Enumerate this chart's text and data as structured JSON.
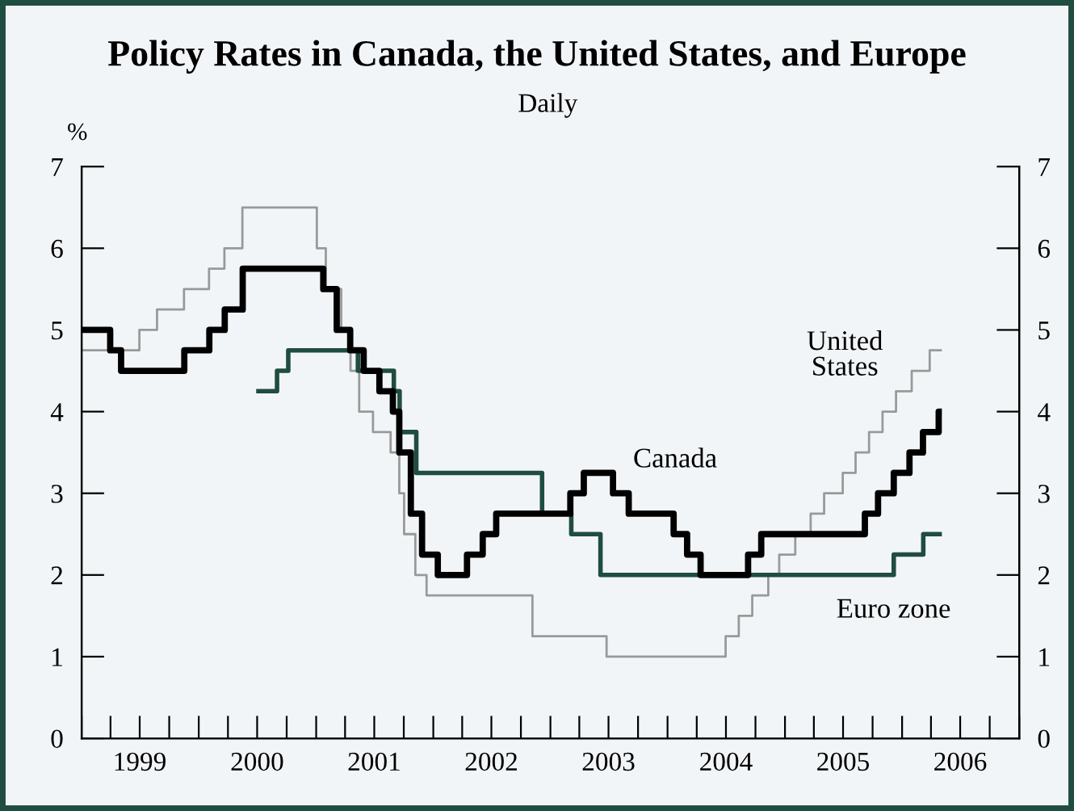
{
  "chart_data": {
    "type": "step",
    "title": "Policy Rates in Canada, the United States, and Europe",
    "subtitle": "Daily",
    "ylabel": "%",
    "xlim": [
      "1999-01-01",
      "2007-01-01"
    ],
    "xticks": [
      {
        "value": "1999-01-01",
        "label": null
      },
      {
        "value": "1999-04-01",
        "label": null
      },
      {
        "value": "1999-07-01",
        "label": "1999"
      },
      {
        "value": "1999-10-01",
        "label": null
      },
      {
        "value": "2000-01-01",
        "label": null
      },
      {
        "value": "2000-04-01",
        "label": null
      },
      {
        "value": "2000-07-01",
        "label": "2000"
      },
      {
        "value": "2000-10-01",
        "label": null
      },
      {
        "value": "2001-01-01",
        "label": null
      },
      {
        "value": "2001-04-01",
        "label": null
      },
      {
        "value": "2001-07-01",
        "label": "2001"
      },
      {
        "value": "2001-10-01",
        "label": null
      },
      {
        "value": "2002-01-01",
        "label": null
      },
      {
        "value": "2002-04-01",
        "label": null
      },
      {
        "value": "2002-07-01",
        "label": "2002"
      },
      {
        "value": "2002-10-01",
        "label": null
      },
      {
        "value": "2003-01-01",
        "label": null
      },
      {
        "value": "2003-04-01",
        "label": null
      },
      {
        "value": "2003-07-01",
        "label": "2003"
      },
      {
        "value": "2003-10-01",
        "label": null
      },
      {
        "value": "2004-01-01",
        "label": null
      },
      {
        "value": "2004-04-01",
        "label": null
      },
      {
        "value": "2004-07-01",
        "label": "2004"
      },
      {
        "value": "2004-10-01",
        "label": null
      },
      {
        "value": "2005-01-01",
        "label": null
      },
      {
        "value": "2005-04-01",
        "label": null
      },
      {
        "value": "2005-07-01",
        "label": "2005"
      },
      {
        "value": "2005-10-01",
        "label": null
      },
      {
        "value": "2006-01-01",
        "label": null
      },
      {
        "value": "2006-04-01",
        "label": null
      },
      {
        "value": "2006-07-01",
        "label": "2006"
      },
      {
        "value": "2006-10-01",
        "label": null
      },
      {
        "value": "2007-01-01",
        "label": null
      }
    ],
    "ylim": [
      0,
      7
    ],
    "yticks": [
      0,
      1,
      2,
      3,
      4,
      5,
      6,
      7
    ],
    "y2lim": [
      0,
      7
    ],
    "y2ticks": [
      0,
      1,
      2,
      3,
      4,
      5,
      6,
      7
    ],
    "grid": false,
    "legend": false,
    "series": [
      {
        "name": "United\nStates",
        "color": "#999999",
        "x": [
          "1999-01-01",
          "1999-06-30",
          "1999-08-24",
          "1999-11-16",
          "2000-02-02",
          "2000-03-21",
          "2000-05-16",
          "2001-01-03",
          "2001-01-31",
          "2001-03-20",
          "2001-04-18",
          "2001-05-15",
          "2001-06-27",
          "2001-08-21",
          "2001-09-17",
          "2001-10-02",
          "2001-11-06",
          "2001-12-11",
          "2002-11-06",
          "2003-06-25",
          "2004-06-30",
          "2004-08-10",
          "2004-09-21",
          "2004-11-10",
          "2004-12-14",
          "2005-02-02",
          "2005-03-22",
          "2005-05-03",
          "2005-06-30",
          "2005-08-09",
          "2005-09-20",
          "2005-11-01",
          "2005-12-13",
          "2006-01-31",
          "2006-03-28",
          "2006-05-05"
        ],
        "values": [
          4.75,
          5.0,
          5.25,
          5.5,
          5.75,
          6.0,
          6.5,
          6.0,
          5.5,
          5.0,
          4.5,
          4.0,
          3.75,
          3.5,
          3.0,
          2.5,
          2.0,
          1.75,
          1.25,
          1.0,
          1.25,
          1.5,
          1.75,
          2.0,
          2.25,
          2.5,
          2.75,
          3.0,
          3.25,
          3.5,
          3.75,
          4.0,
          4.25,
          4.5,
          4.75,
          4.75
        ]
      },
      {
        "name": "Euro zone",
        "color": "#1f4d40",
        "x": [
          "2000-06-28",
          "2000-09-01",
          "2000-10-06",
          "2001-05-11",
          "2001-08-31",
          "2001-09-18",
          "2001-11-09",
          "2002-12-06",
          "2003-03-07",
          "2003-06-06",
          "2005-12-06",
          "2006-03-08",
          "2006-05-05"
        ],
        "values": [
          4.25,
          4.5,
          4.75,
          4.5,
          4.25,
          3.75,
          3.25,
          2.75,
          2.5,
          2.0,
          2.25,
          2.5,
          2.5
        ]
      },
      {
        "name": "Canada",
        "color": "#000000",
        "x": [
          "1999-01-01",
          "1999-03-31",
          "1999-05-04",
          "1999-11-17",
          "2000-02-03",
          "2000-03-22",
          "2000-05-17",
          "2001-01-23",
          "2001-03-06",
          "2001-04-17",
          "2001-05-29",
          "2001-07-17",
          "2001-08-28",
          "2001-09-17",
          "2001-10-23",
          "2001-11-27",
          "2002-01-15",
          "2002-04-16",
          "2002-06-04",
          "2002-07-16",
          "2003-03-04",
          "2003-04-15",
          "2003-07-15",
          "2003-09-02",
          "2004-01-20",
          "2004-03-02",
          "2004-04-13",
          "2004-09-08",
          "2004-10-19",
          "2005-09-07",
          "2005-10-18",
          "2005-12-06",
          "2006-01-24",
          "2006-03-07",
          "2006-04-25",
          "2006-05-05"
        ],
        "values": [
          5.0,
          4.75,
          4.5,
          4.75,
          5.0,
          5.25,
          5.75,
          5.5,
          5.0,
          4.75,
          4.5,
          4.25,
          4.0,
          3.5,
          2.75,
          2.25,
          2.0,
          2.25,
          2.5,
          2.75,
          3.0,
          3.25,
          3.0,
          2.75,
          2.5,
          2.25,
          2.0,
          2.25,
          2.5,
          2.75,
          3.0,
          3.25,
          3.5,
          3.75,
          4.0,
          4.0
        ]
      }
    ]
  }
}
